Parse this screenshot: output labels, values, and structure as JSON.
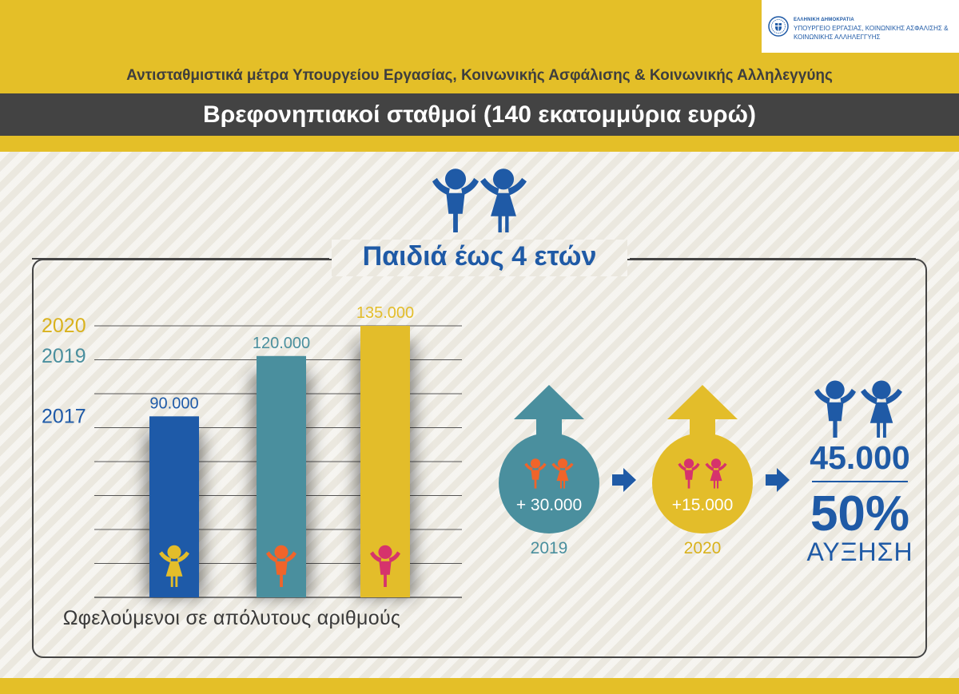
{
  "header": {
    "logo_line1": "ΕΛΛΗΝΙΚΗ ΔΗΜΟΚΡΑΤΙΑ",
    "logo_line2": "ΥΠΟΥΡΓΕΙΟ ΕΡΓΑΣΙΑΣ, ΚΟΙΝΩΝΙΚΗΣ ΑΣΦΑΛΙΣΗΣ &",
    "logo_line3": "ΚΟΙΝΩΝΙΚΗΣ ΑΛΛΗΛΕΓΓΥΗΣ",
    "ministry_title": "Αντισταθμιστικά μέτρα Υπουργείου Εργασίας, Κοινωνικής Ασφάλισης & Κοινωνικής Αλληλεγγύης",
    "main_title": "Βρεφονηπιακοί σταθμοί (140 εκατομμύρια ευρώ)"
  },
  "panel_title": "Παιδιά έως 4 ετών",
  "chart_data": {
    "type": "bar",
    "categories": [
      "2017",
      "2019",
      "2020"
    ],
    "values": [
      90000,
      120000,
      135000
    ],
    "value_labels": [
      "90.000",
      "120.000",
      "135.000"
    ],
    "category_colors": [
      "#1e5aa8",
      "#4a8f9e",
      "#e3bd2a"
    ],
    "icon_colors": [
      "#e3bd2a",
      "#f0642a",
      "#d6336c"
    ],
    "ylim": [
      0,
      135000
    ],
    "xlabel": "Ωφελούμενοι σε απόλυτους αριθμούς",
    "grid": true
  },
  "flow": {
    "steps": [
      {
        "value": "+ 30.000",
        "year": "2019",
        "color": "#4a8f9e",
        "kids_color": "#f0642a"
      },
      {
        "value": "+15.000",
        "year": "2020",
        "color": "#e3bd2a",
        "kids_color": "#d6336c"
      }
    ],
    "arrow_color": "#1f5aa6",
    "total": "45.000",
    "percent": "50%",
    "increase_label": "ΑΥΞΗΣΗ"
  },
  "colors": {
    "yellow": "#e4bf28",
    "blue": "#1f5aa6",
    "dark_bar": "#434343"
  }
}
